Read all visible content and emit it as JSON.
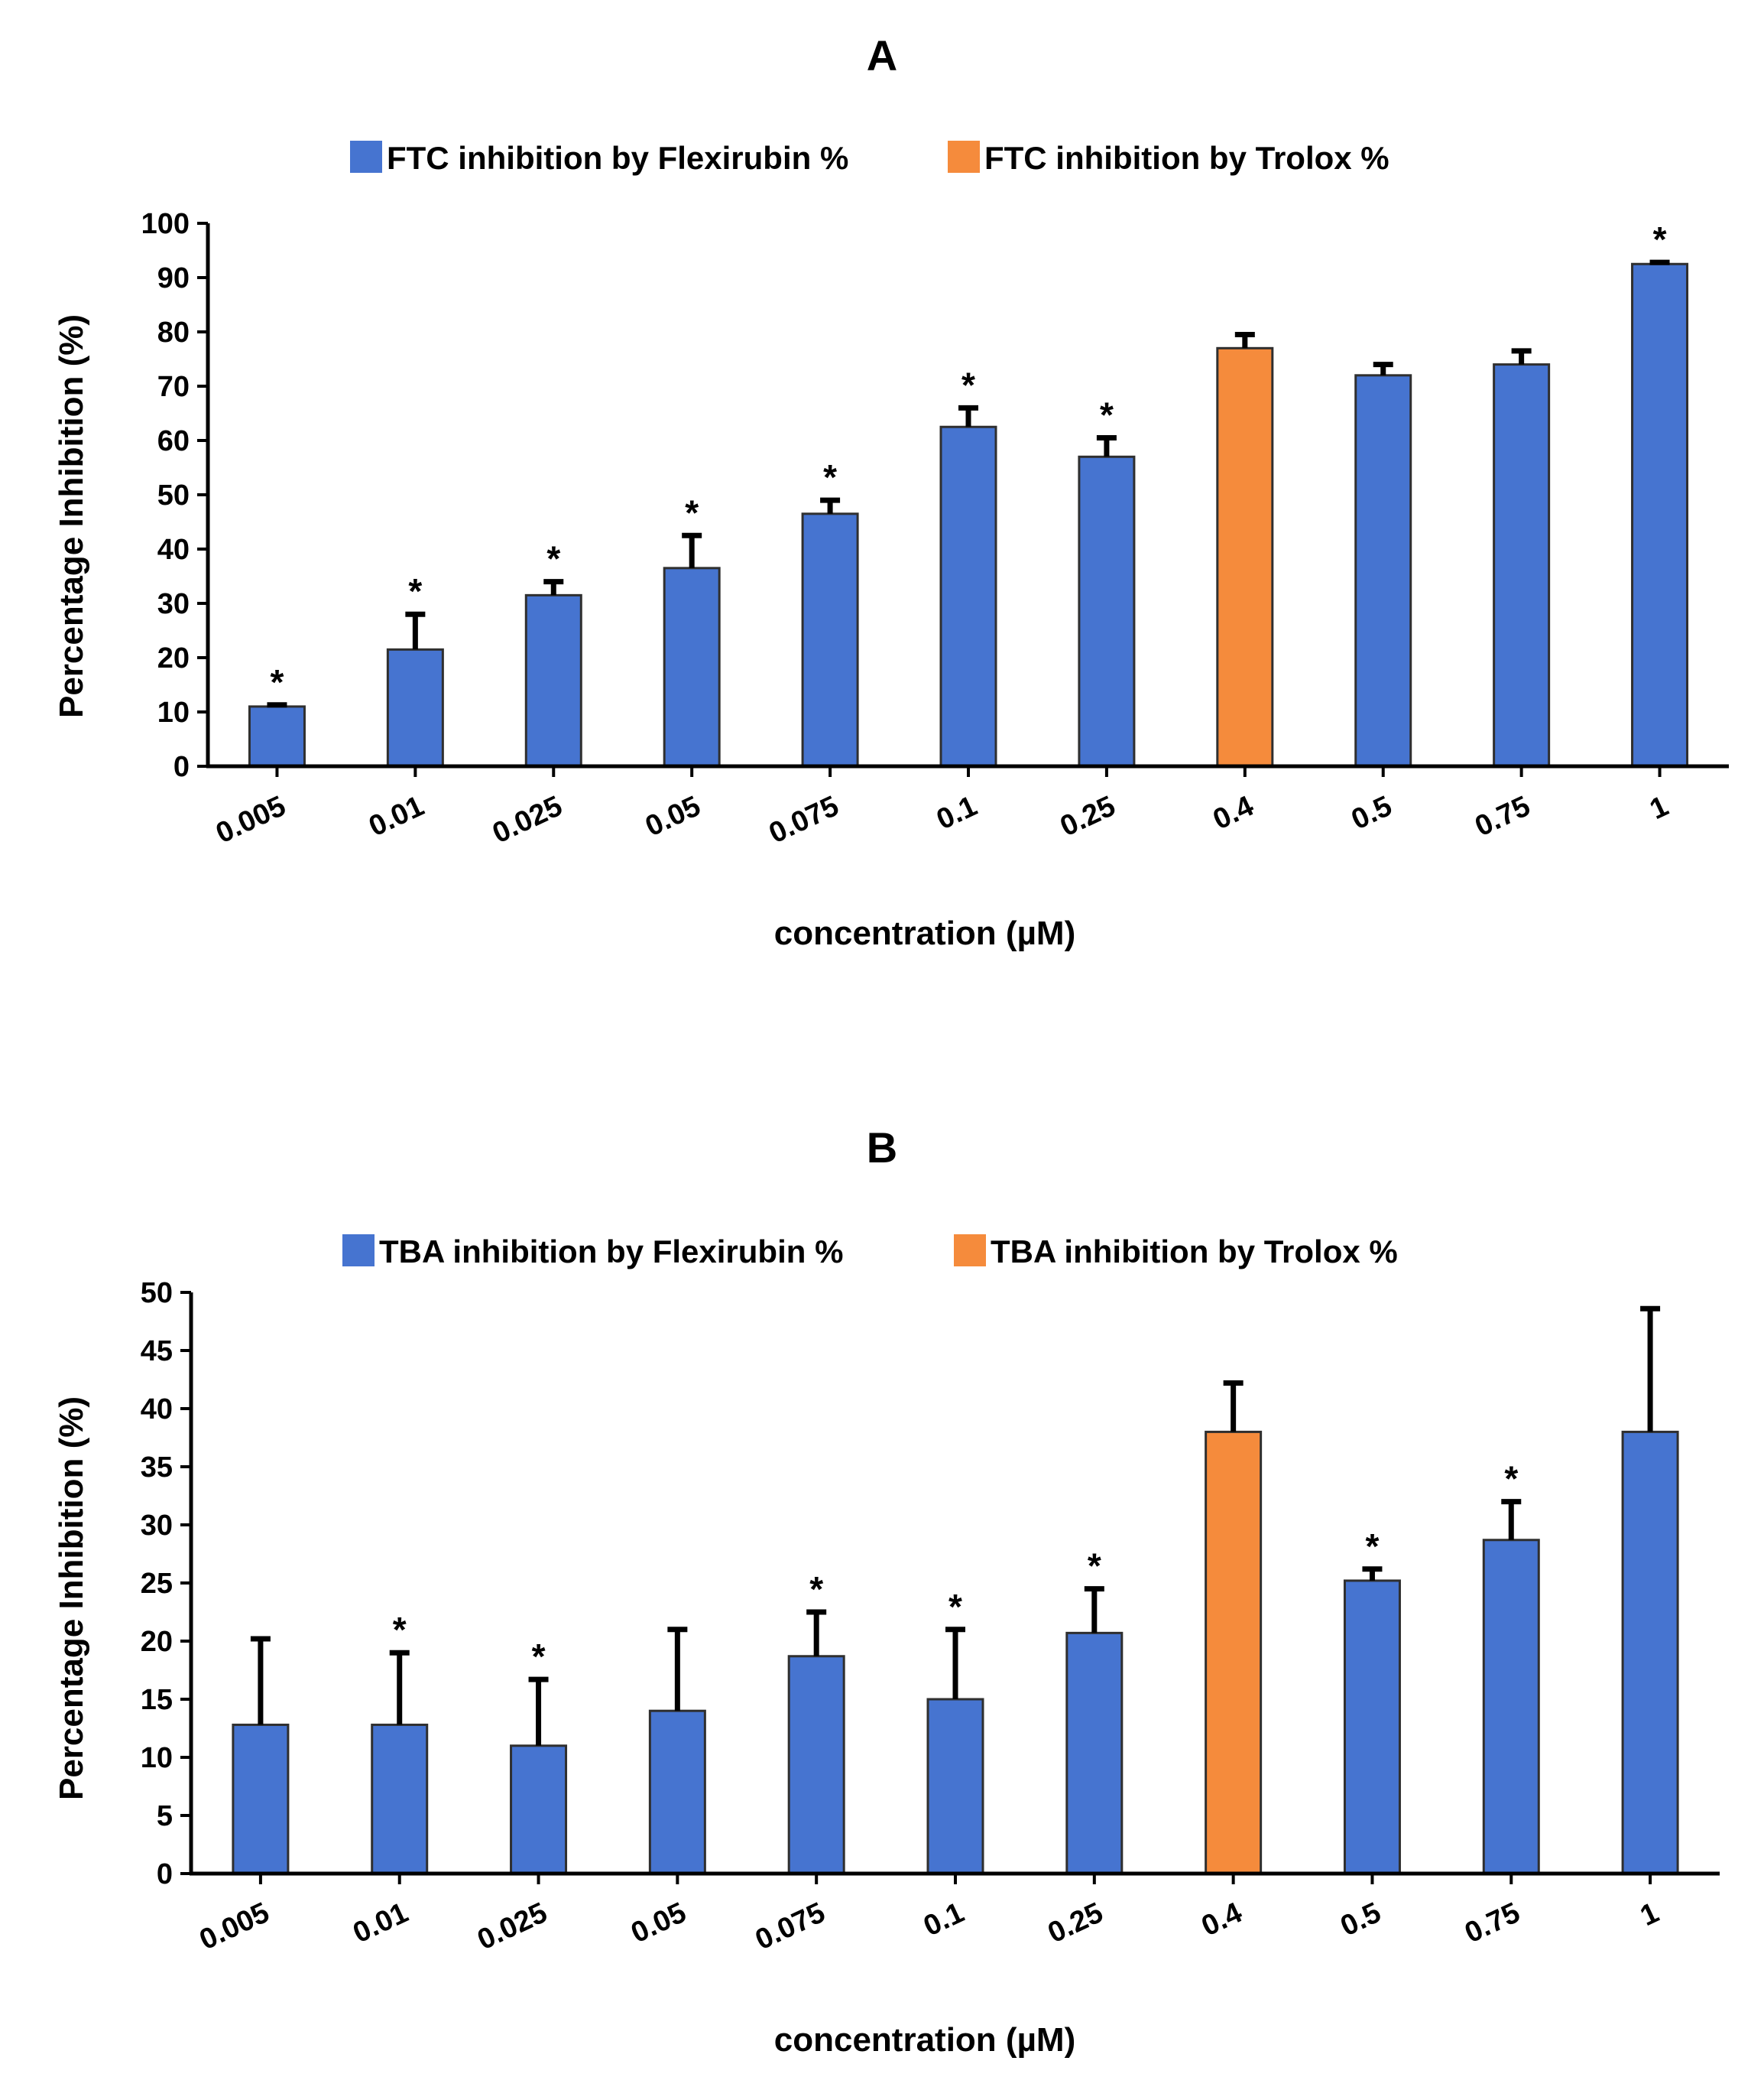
{
  "colors": {
    "flexirubin": "#4674D0",
    "trolox": "#F58B3C",
    "axis": "#000000"
  },
  "chart_data": [
    {
      "type": "bar",
      "title": "A",
      "xlabel": "concentration (µM)",
      "ylabel": "Percentage Inhibition (%)",
      "ylim": [
        0,
        100
      ],
      "ytick_step": 10,
      "legend_position": "top-center",
      "categories": [
        "0.005",
        "0.01",
        "0.025",
        "0.05",
        "0.075",
        "0.1",
        "0.25",
        "0.4",
        "0.5",
        "0.75",
        "1"
      ],
      "series": [
        {
          "name": "FTC inhibition by Flexirubin %",
          "color_key": "flexirubin"
        },
        {
          "name": "FTC inhibition by Trolox %",
          "color_key": "trolox"
        }
      ],
      "bars": [
        {
          "category": "0.005",
          "series": 0,
          "value": 11,
          "error": 0.3,
          "significant": true
        },
        {
          "category": "0.01",
          "series": 0,
          "value": 21.5,
          "error": 6.5,
          "significant": true
        },
        {
          "category": "0.025",
          "series": 0,
          "value": 31.5,
          "error": 2.5,
          "significant": true
        },
        {
          "category": "0.05",
          "series": 0,
          "value": 36.5,
          "error": 6,
          "significant": true
        },
        {
          "category": "0.075",
          "series": 0,
          "value": 46.5,
          "error": 2.5,
          "significant": true
        },
        {
          "category": "0.1",
          "series": 0,
          "value": 62.5,
          "error": 3.5,
          "significant": true
        },
        {
          "category": "0.25",
          "series": 0,
          "value": 57,
          "error": 3.5,
          "significant": true
        },
        {
          "category": "0.4",
          "series": 1,
          "value": 77,
          "error": 2.5,
          "significant": false
        },
        {
          "category": "0.5",
          "series": 0,
          "value": 72,
          "error": 2,
          "significant": false
        },
        {
          "category": "0.75",
          "series": 0,
          "value": 74,
          "error": 2.5,
          "significant": false
        },
        {
          "category": "1",
          "series": 0,
          "value": 92.5,
          "error": 0.3,
          "significant": true
        }
      ],
      "significance_marker": "*"
    },
    {
      "type": "bar",
      "title": "B",
      "xlabel": "concentration (µM)",
      "ylabel": "Percentage Inhibition (%)",
      "ylim": [
        0,
        50
      ],
      "ytick_step": 5,
      "legend_position": "top-center",
      "categories": [
        "0.005",
        "0.01",
        "0.025",
        "0.05",
        "0.075",
        "0.1",
        "0.25",
        "0.4",
        "0.5",
        "0.75",
        "1"
      ],
      "series": [
        {
          "name": "TBA inhibition by Flexirubin %",
          "color_key": "flexirubin"
        },
        {
          "name": "TBA inhibition by Trolox %",
          "color_key": "trolox"
        }
      ],
      "bars": [
        {
          "category": "0.005",
          "series": 0,
          "value": 12.8,
          "error": 7.4,
          "significant": false
        },
        {
          "category": "0.01",
          "series": 0,
          "value": 12.8,
          "error": 6.2,
          "significant": true
        },
        {
          "category": "0.025",
          "series": 0,
          "value": 11,
          "error": 5.7,
          "significant": true
        },
        {
          "category": "0.05",
          "series": 0,
          "value": 14,
          "error": 7,
          "significant": false
        },
        {
          "category": "0.075",
          "series": 0,
          "value": 18.7,
          "error": 3.8,
          "significant": true
        },
        {
          "category": "0.1",
          "series": 0,
          "value": 15,
          "error": 6,
          "significant": true
        },
        {
          "category": "0.25",
          "series": 0,
          "value": 20.7,
          "error": 3.8,
          "significant": true
        },
        {
          "category": "0.4",
          "series": 1,
          "value": 38,
          "error": 4.2,
          "significant": false
        },
        {
          "category": "0.5",
          "series": 0,
          "value": 25.2,
          "error": 1,
          "significant": true
        },
        {
          "category": "0.75",
          "series": 0,
          "value": 28.7,
          "error": 3.3,
          "significant": true
        },
        {
          "category": "1",
          "series": 0,
          "value": 38,
          "error": 10.6,
          "significant": false
        }
      ],
      "significance_marker": "*"
    }
  ]
}
